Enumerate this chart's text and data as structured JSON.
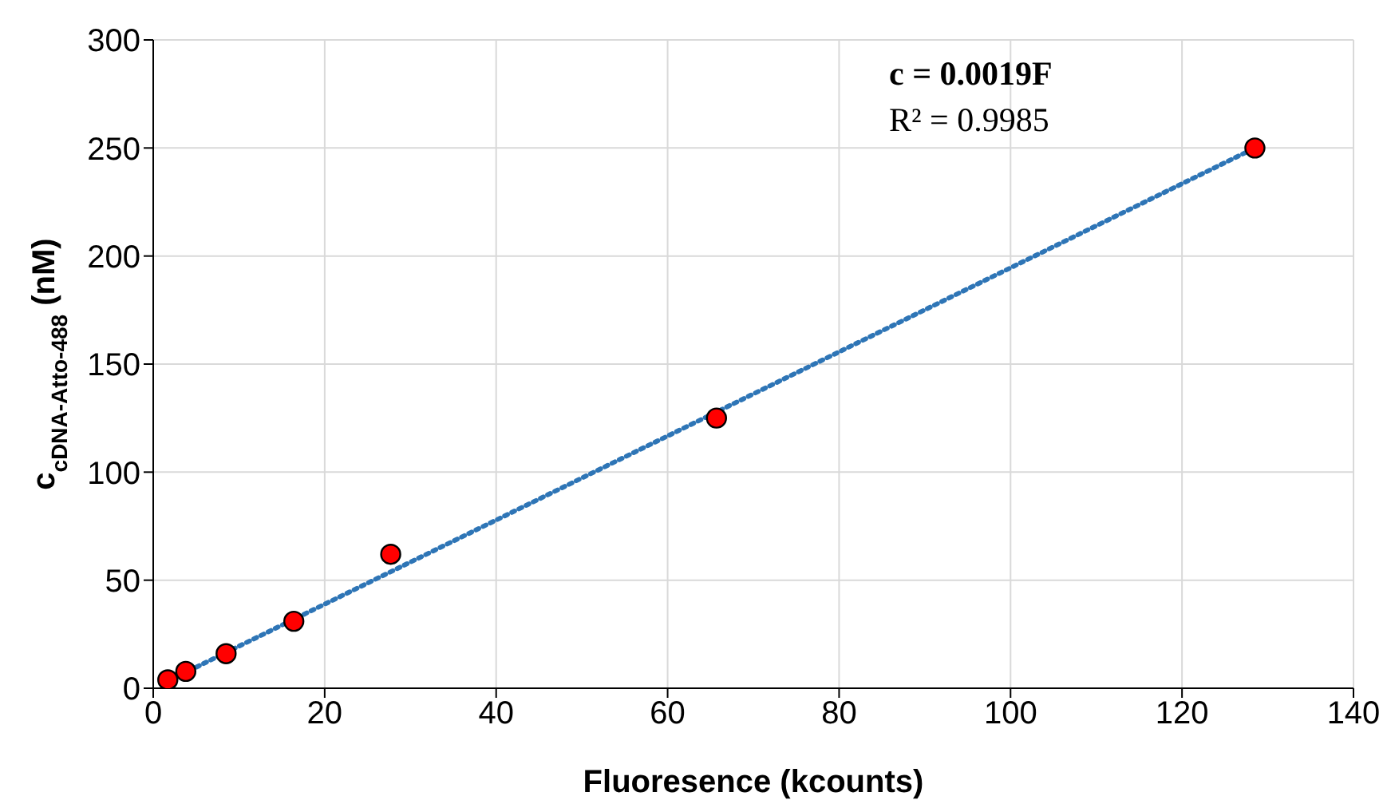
{
  "chart_data": {
    "type": "scatter",
    "xlabel": "Fluoresence (kcounts)",
    "ylabel": "c$_{cDNA-Atto-488}$ (nM)",
    "annotations": [
      "c = 0.0019F",
      "R² = 0.9985"
    ],
    "series": [
      {
        "color": "#ff0000",
        "x": [
          1.7,
          3.8,
          8.5,
          16.4,
          27.7,
          65.7,
          128.5
        ],
        "values": [
          3.9,
          7.8,
          16,
          31,
          62,
          125,
          250
        ],
        "marker": "circle"
      },
      {
        "type": "line",
        "color": "#2e75b6",
        "x": [
          1.7,
          128.5
        ],
        "values": [
          3.3,
          250
        ],
        "line_style": "dotted",
        "marker": "none"
      }
    ],
    "xlim": [
      0,
      140
    ],
    "xticks": [
      0,
      20,
      40,
      60,
      80,
      100,
      120,
      140
    ],
    "ylim": [
      0,
      300
    ],
    "yticks": [
      0,
      50,
      100,
      150,
      200,
      250,
      300
    ],
    "grid": true,
    "legend": false
  }
}
